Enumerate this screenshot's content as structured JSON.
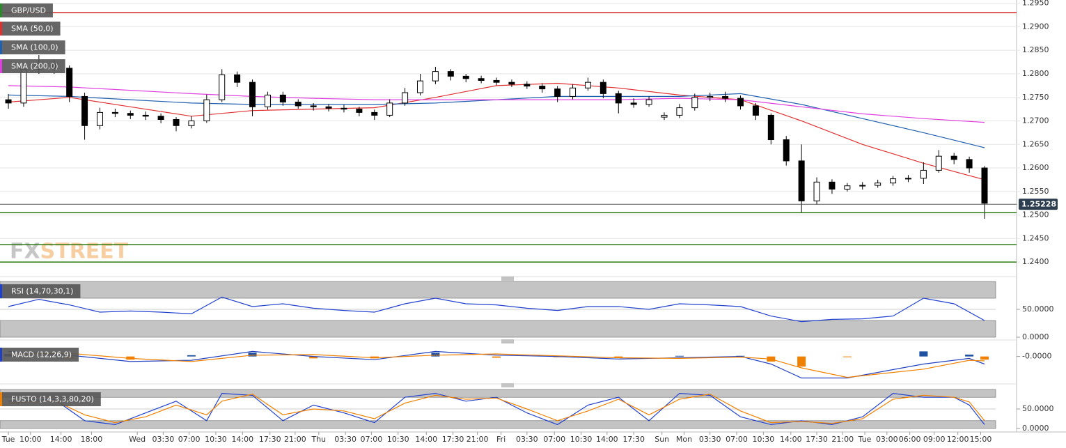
{
  "chart_data": [
    {
      "type": "candlestick",
      "title": "GBP/USD",
      "title_color": "#2a8a2a",
      "x": [
        0,
        2,
        4,
        6,
        8,
        10,
        12,
        14,
        16,
        18,
        20,
        22,
        24,
        26,
        28,
        30,
        32,
        34,
        36,
        38,
        40,
        42,
        44,
        46,
        48,
        50,
        52,
        54,
        56,
        58,
        60,
        62,
        64,
        66,
        68,
        70,
        72,
        74,
        76,
        78,
        80,
        82,
        84,
        86,
        88,
        90,
        92,
        94,
        96,
        98,
        100,
        102,
        104,
        106,
        108,
        110,
        112,
        114,
        116,
        118,
        120,
        122,
        124,
        126,
        128
      ],
      "open": [
        1.2745,
        1.2738,
        1.281,
        1.2822,
        1.2812,
        1.2752,
        1.269,
        1.2718,
        1.2716,
        1.2712,
        1.271,
        1.2703,
        1.269,
        1.27,
        1.2745,
        1.2798,
        1.2782,
        1.273,
        1.2755,
        1.274,
        1.2732,
        1.273,
        1.2727,
        1.2725,
        1.2718,
        1.2712,
        1.2738,
        1.276,
        1.2785,
        1.2805,
        1.2795,
        1.279,
        1.2786,
        1.2782,
        1.2778,
        1.2774,
        1.2768,
        1.2752,
        1.277,
        1.2782,
        1.2758,
        1.2738,
        1.2735,
        1.2708,
        1.2712,
        1.2728,
        1.275,
        1.2752,
        1.2748,
        1.2732,
        1.2712,
        1.266,
        1.2615,
        1.253,
        1.257,
        1.2555,
        1.2562,
        1.2563,
        1.2568,
        1.2577,
        1.2578,
        1.2595,
        1.2625,
        1.2618,
        1.26
      ],
      "high": [
        1.2757,
        1.2822,
        1.284,
        1.283,
        1.2818,
        1.276,
        1.2728,
        1.2726,
        1.2722,
        1.272,
        1.2716,
        1.2708,
        1.271,
        1.2756,
        1.281,
        1.2805,
        1.2788,
        1.2762,
        1.2762,
        1.2746,
        1.2738,
        1.2736,
        1.2734,
        1.273,
        1.2724,
        1.2746,
        1.277,
        1.28,
        1.2815,
        1.281,
        1.28,
        1.2796,
        1.2792,
        1.2788,
        1.2784,
        1.278,
        1.2774,
        1.2778,
        1.2792,
        1.2788,
        1.2764,
        1.2748,
        1.2752,
        1.2718,
        1.2736,
        1.2758,
        1.276,
        1.2762,
        1.2754,
        1.2738,
        1.2716,
        1.2668,
        1.265,
        1.258,
        1.2576,
        1.2568,
        1.257,
        1.2575,
        1.2583,
        1.2585,
        1.2612,
        1.2638,
        1.2632,
        1.2624,
        1.2604
      ],
      "low": [
        1.2726,
        1.273,
        1.28,
        1.28,
        1.274,
        1.266,
        1.2682,
        1.2708,
        1.2704,
        1.2702,
        1.2695,
        1.2678,
        1.2684,
        1.2696,
        1.274,
        1.2772,
        1.271,
        1.2724,
        1.2732,
        1.2726,
        1.2722,
        1.272,
        1.2718,
        1.271,
        1.2702,
        1.2708,
        1.2732,
        1.2754,
        1.2778,
        1.2786,
        1.2782,
        1.278,
        1.2776,
        1.2772,
        1.2768,
        1.276,
        1.274,
        1.2746,
        1.2764,
        1.2748,
        1.2716,
        1.2728,
        1.273,
        1.2702,
        1.2706,
        1.2722,
        1.2742,
        1.274,
        1.2724,
        1.2702,
        1.265,
        1.2605,
        1.2505,
        1.2522,
        1.2545,
        1.255,
        1.2554,
        1.2558,
        1.2562,
        1.257,
        1.2566,
        1.259,
        1.2608,
        1.259,
        1.2492
      ],
      "close": [
        1.2738,
        1.281,
        1.2822,
        1.2812,
        1.2752,
        1.269,
        1.2718,
        1.2716,
        1.2712,
        1.271,
        1.2703,
        1.269,
        1.27,
        1.2745,
        1.2798,
        1.2782,
        1.273,
        1.2755,
        1.274,
        1.2732,
        1.273,
        1.2727,
        1.2725,
        1.2718,
        1.2712,
        1.2738,
        1.276,
        1.2785,
        1.2805,
        1.2795,
        1.279,
        1.2786,
        1.2782,
        1.2778,
        1.2774,
        1.2768,
        1.2752,
        1.277,
        1.2782,
        1.2758,
        1.2738,
        1.2735,
        1.2745,
        1.2712,
        1.2728,
        1.275,
        1.2752,
        1.2748,
        1.2732,
        1.2712,
        1.266,
        1.2615,
        1.253,
        1.257,
        1.2555,
        1.2562,
        1.2563,
        1.2568,
        1.2577,
        1.2578,
        1.2595,
        1.2625,
        1.2618,
        1.26,
        1.2525
      ],
      "series": [
        {
          "name": "SMA (50,0)",
          "color": "#e03030",
          "x": [
            0,
            8,
            16,
            24,
            32,
            40,
            48,
            56,
            64,
            72,
            80,
            88,
            96,
            104,
            112,
            120,
            128
          ],
          "values": [
            1.274,
            1.275,
            1.273,
            1.271,
            1.2722,
            1.2725,
            1.2728,
            1.275,
            1.2775,
            1.278,
            1.277,
            1.2755,
            1.2745,
            1.27,
            1.265,
            1.261,
            1.2575
          ]
        },
        {
          "name": "SMA (100,0)",
          "color": "#2060b0",
          "x": [
            0,
            8,
            16,
            24,
            32,
            40,
            48,
            56,
            64,
            72,
            80,
            88,
            96,
            104,
            112,
            120,
            128
          ],
          "values": [
            1.2755,
            1.2752,
            1.2745,
            1.2738,
            1.2735,
            1.2735,
            1.2735,
            1.2738,
            1.2745,
            1.2752,
            1.2752,
            1.2752,
            1.2758,
            1.2735,
            1.2705,
            1.2675,
            1.2643
          ]
        },
        {
          "name": "SMA (200,0)",
          "color": "#e040e0",
          "x": [
            0,
            8,
            16,
            24,
            32,
            40,
            48,
            56,
            64,
            72,
            80,
            88,
            96,
            104,
            112,
            120,
            128
          ],
          "values": [
            1.2775,
            1.2772,
            1.2765,
            1.2758,
            1.2752,
            1.2748,
            1.2745,
            1.2745,
            1.2745,
            1.2745,
            1.2745,
            1.2748,
            1.2745,
            1.273,
            1.2715,
            1.2705,
            1.2697
          ]
        }
      ],
      "hlines": [
        {
          "value": 1.293,
          "color": "#d02020"
        },
        {
          "value": 1.2505,
          "color": "#2a7a10"
        },
        {
          "value": 1.2437,
          "color": "#2a7a10"
        },
        {
          "value": 1.24,
          "color": "#2a7a10"
        }
      ],
      "last_price": 1.25228,
      "watermark": [
        "FX",
        "STREET"
      ],
      "grid": true,
      "ylim": [
        1.2372,
        1.2957
      ],
      "yticks": [
        {
          "value": 1.295,
          "label": "1.2950"
        },
        {
          "value": 1.29,
          "label": "1.2900"
        },
        {
          "value": 1.285,
          "label": "1.2850"
        },
        {
          "value": 1.28,
          "label": "1.2800"
        },
        {
          "value": 1.275,
          "label": "1.2750"
        },
        {
          "value": 1.27,
          "label": "1.2700"
        },
        {
          "value": 1.265,
          "label": "1.2650"
        },
        {
          "value": 1.26,
          "label": "1.2600"
        },
        {
          "value": 1.255,
          "label": "1.2550"
        },
        {
          "value": 1.25,
          "label": "1.2500"
        },
        {
          "value": 1.245,
          "label": "1.2450"
        },
        {
          "value": 1.24,
          "label": "1.2400"
        }
      ],
      "xlim": [
        -1.1,
        132.2
      ],
      "xticks": [
        {
          "value": 0,
          "label": "Tue"
        },
        {
          "value": 2.9,
          "label": "10:00"
        },
        {
          "value": 6.9,
          "label": "14:00"
        },
        {
          "value": 10.9,
          "label": "18:00"
        },
        {
          "value": 16.9,
          "label": "Wed"
        },
        {
          "value": 20.3,
          "label": "03:30"
        },
        {
          "value": 23.7,
          "label": "07:00"
        },
        {
          "value": 27.2,
          "label": "10:30"
        },
        {
          "value": 30.7,
          "label": "14:00"
        },
        {
          "value": 34.3,
          "label": "17:30"
        },
        {
          "value": 37.6,
          "label": "21:00"
        },
        {
          "value": 40.7,
          "label": "Thu"
        },
        {
          "value": 44.2,
          "label": "03:30"
        },
        {
          "value": 47.6,
          "label": "07:00"
        },
        {
          "value": 51.1,
          "label": "10:30"
        },
        {
          "value": 54.8,
          "label": "14:00"
        },
        {
          "value": 58.3,
          "label": "17:30"
        },
        {
          "value": 61.5,
          "label": "21:00"
        },
        {
          "value": 64.6,
          "label": "Fri"
        },
        {
          "value": 68.0,
          "label": "03:30"
        },
        {
          "value": 71.6,
          "label": "07:00"
        },
        {
          "value": 75.1,
          "label": "10:30"
        },
        {
          "value": 78.5,
          "label": "14:00"
        },
        {
          "value": 82.0,
          "label": "17:30"
        },
        {
          "value": 85.7,
          "label": "Sun"
        },
        {
          "value": 88.6,
          "label": "Mon"
        },
        {
          "value": 92.0,
          "label": "03:30"
        },
        {
          "value": 95.5,
          "label": "07:00"
        },
        {
          "value": 99.0,
          "label": "10:30"
        },
        {
          "value": 102.6,
          "label": "14:00"
        },
        {
          "value": 106.0,
          "label": "17:30"
        },
        {
          "value": 109.4,
          "label": "21:00"
        },
        {
          "value": 112.3,
          "label": "Tue"
        },
        {
          "value": 115.2,
          "label": "03:00"
        },
        {
          "value": 118.2,
          "label": "06:00"
        },
        {
          "value": 121.4,
          "label": "09:00"
        },
        {
          "value": 124.5,
          "label": "12:00"
        },
        {
          "value": 127.5,
          "label": "15:00"
        }
      ]
    },
    {
      "type": "line",
      "title": "RSI (14,70,30,1)",
      "title_color": "#2040d0",
      "levels": [
        70,
        30
      ],
      "series": [
        {
          "color": "#2040d0",
          "x": [
            0,
            4,
            8,
            12,
            16,
            20,
            24,
            28,
            32,
            36,
            40,
            44,
            48,
            52,
            56,
            60,
            64,
            68,
            72,
            76,
            80,
            84,
            88,
            92,
            96,
            100,
            104,
            108,
            112,
            116,
            120,
            124,
            128
          ],
          "values": [
            55,
            68,
            58,
            45,
            47,
            45,
            42,
            72,
            55,
            60,
            52,
            48,
            45,
            60,
            70,
            60,
            58,
            52,
            48,
            55,
            55,
            50,
            60,
            58,
            55,
            38,
            28,
            32,
            33,
            38,
            70,
            60,
            30
          ]
        }
      ],
      "ylim": [
        0,
        100
      ],
      "yticks": [
        {
          "value": 50,
          "label": "50.0000"
        },
        {
          "value": 0,
          "label": "0.0000"
        }
      ]
    },
    {
      "type": "macd",
      "title": "MACD (12,26,9)",
      "title_color": "#2040c0",
      "x": [
        0,
        8,
        16,
        24,
        32,
        40,
        48,
        56,
        64,
        72,
        80,
        88,
        96,
        100,
        104,
        110,
        120,
        126,
        128
      ],
      "hist": [
        0.0004,
        -0.0003,
        -0.0005,
        0.0002,
        0.0006,
        -0.0003,
        -0.0003,
        0.0006,
        -0.0002,
        -0.0001,
        -0.0002,
        0.0001,
        0.0001,
        -0.0008,
        -0.0016,
        -0.0001,
        0.0008,
        0.0003,
        -0.0005
      ],
      "up_color": "#2050a0",
      "down_color": "#f08000",
      "series": [
        {
          "color": "#2040c0",
          "x": [
            0,
            8,
            16,
            24,
            32,
            40,
            48,
            56,
            64,
            72,
            80,
            88,
            96,
            100,
            104,
            110,
            120,
            126,
            128
          ],
          "values": [
            0.0008,
            0.0002,
            -0.0008,
            -0.0006,
            0.0008,
            0.0,
            -0.0005,
            0.0008,
            0.0002,
            0.0,
            -0.0004,
            -0.0002,
            0.0,
            -0.0012,
            -0.0034,
            -0.0034,
            -0.0012,
            -0.0003,
            -0.0012
          ]
        },
        {
          "color": "#f08000",
          "x": [
            0,
            8,
            16,
            24,
            32,
            40,
            48,
            56,
            64,
            72,
            80,
            88,
            96,
            100,
            104,
            110,
            120,
            126,
            128
          ],
          "values": [
            0.0004,
            0.0005,
            -0.0003,
            -0.0008,
            0.0002,
            0.0003,
            -0.0002,
            0.0002,
            0.0004,
            0.0001,
            -0.0002,
            -0.0003,
            -0.0001,
            -0.0004,
            -0.0018,
            -0.0033,
            -0.002,
            -0.0006,
            -0.0007
          ]
        }
      ],
      "ylim": [
        -0.004,
        0.0015
      ],
      "yticks": [
        {
          "value": 0,
          "label": "-0.0000"
        }
      ]
    },
    {
      "type": "line",
      "title": "FUSTO (14,3,3,80,20)",
      "title_color": "#f08000",
      "levels": [
        80,
        20
      ],
      "series": [
        {
          "color": "#2040d0",
          "x": [
            0,
            6,
            10,
            14,
            18,
            22,
            26,
            28,
            32,
            36,
            40,
            44,
            48,
            52,
            56,
            60,
            64,
            68,
            72,
            76,
            80,
            84,
            88,
            92,
            96,
            100,
            104,
            108,
            112,
            116,
            120,
            124,
            126,
            128
          ],
          "values": [
            70,
            75,
            20,
            10,
            40,
            70,
            20,
            90,
            85,
            20,
            60,
            40,
            15,
            80,
            90,
            70,
            80,
            40,
            10,
            60,
            80,
            20,
            90,
            85,
            30,
            10,
            20,
            10,
            30,
            90,
            80,
            80,
            60,
            10
          ]
        },
        {
          "color": "#f08000",
          "x": [
            0,
            6,
            10,
            14,
            18,
            22,
            26,
            28,
            32,
            36,
            40,
            44,
            48,
            52,
            56,
            60,
            64,
            68,
            72,
            76,
            80,
            84,
            88,
            92,
            96,
            100,
            104,
            108,
            112,
            116,
            120,
            124,
            126,
            128
          ],
          "values": [
            65,
            72,
            35,
            15,
            30,
            60,
            35,
            70,
            88,
            35,
            50,
            45,
            25,
            65,
            85,
            75,
            78,
            50,
            20,
            45,
            75,
            35,
            75,
            88,
            45,
            15,
            18,
            13,
            25,
            75,
            85,
            80,
            68,
            20
          ]
        }
      ],
      "ylim": [
        0,
        100
      ],
      "yticks": [
        {
          "value": 50,
          "label": "50.0000"
        },
        {
          "value": 0,
          "label": "0.0000"
        }
      ]
    }
  ]
}
